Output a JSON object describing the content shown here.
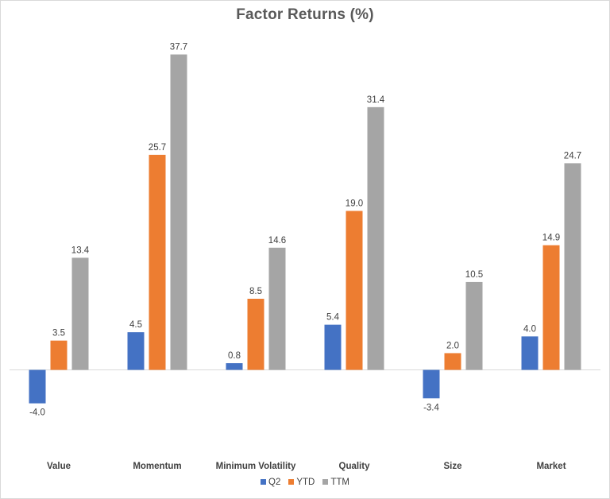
{
  "chart_data": {
    "type": "bar",
    "title": "Factor Returns (%)",
    "categories": [
      "Value",
      "Momentum",
      "Minimum Volatility",
      "Quality",
      "Size",
      "Market"
    ],
    "series": [
      {
        "name": "Q2",
        "color": "#4472c4",
        "values": [
          -4.0,
          4.5,
          0.8,
          5.4,
          -3.4,
          4.0
        ]
      },
      {
        "name": "YTD",
        "color": "#ed7d31",
        "values": [
          3.5,
          25.7,
          8.5,
          19.0,
          2.0,
          14.9
        ]
      },
      {
        "name": "TTM",
        "color": "#a5a5a5",
        "values": [
          13.4,
          37.7,
          14.6,
          31.4,
          10.5,
          24.7
        ]
      }
    ],
    "data_labels": true,
    "gridlines": false,
    "legend_position": "bottom",
    "xlabel": "",
    "ylabel": ""
  }
}
